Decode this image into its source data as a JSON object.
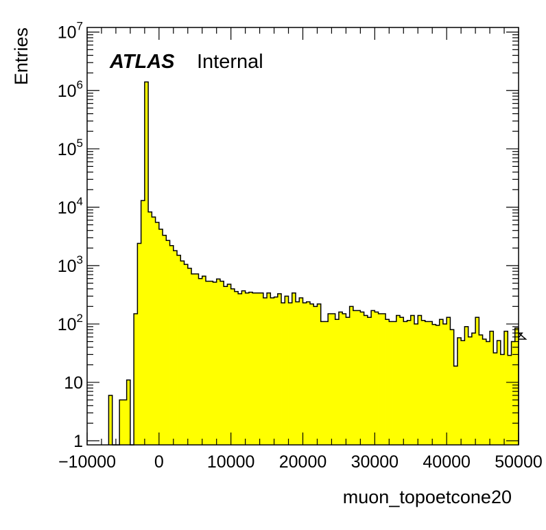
{
  "chart_data": {
    "type": "bar",
    "histogram_style": "step-filled",
    "fill_color": "#ffff00",
    "line_color": "#000000",
    "xlabel": "muon_topoetcone20",
    "ylabel": "Entries",
    "xlim": [
      -10000,
      50000
    ],
    "ylim": [
      0.85,
      12000000
    ],
    "y_scale": "log",
    "bin_width": 500,
    "x_tick_labels": [
      "−10000",
      "0",
      "10000",
      "20000",
      "30000",
      "40000",
      "50000"
    ],
    "x_tick_values": [
      -10000,
      0,
      10000,
      20000,
      30000,
      40000,
      50000
    ],
    "y_tick_labels": [
      {
        "base": "1",
        "exp": ""
      },
      {
        "base": "10",
        "exp": ""
      },
      {
        "base": "10",
        "exp": "2"
      },
      {
        "base": "10",
        "exp": "3"
      },
      {
        "base": "10",
        "exp": "4"
      },
      {
        "base": "10",
        "exp": "5"
      },
      {
        "base": "10",
        "exp": "6"
      },
      {
        "base": "10",
        "exp": "7"
      }
    ],
    "y_tick_values": [
      1,
      10,
      100,
      1000,
      10000,
      100000,
      1000000,
      10000000
    ],
    "bin_edges_start": -7000,
    "values": [
      6,
      0,
      0,
      5,
      5,
      11,
      0,
      150,
      2400,
      13000,
      1400000,
      8300,
      6800,
      5500,
      4200,
      3300,
      2700,
      2200,
      1800,
      1500,
      1200,
      1050,
      900,
      720,
      720,
      600,
      660,
      540,
      540,
      520,
      590,
      540,
      440,
      480,
      400,
      360,
      330,
      370,
      340,
      350,
      340,
      340,
      340,
      280,
      340,
      280,
      290,
      330,
      230,
      300,
      230,
      340,
      240,
      280,
      230,
      240,
      220,
      200,
      220,
      110,
      110,
      150,
      150,
      120,
      160,
      150,
      130,
      200,
      170,
      170,
      160,
      140,
      130,
      170,
      160,
      150,
      150,
      120,
      110,
      110,
      140,
      130,
      110,
      115,
      140,
      100,
      140,
      115,
      110,
      110,
      98,
      95,
      120,
      100,
      130,
      80,
      19,
      58,
      52,
      90,
      60,
      70,
      130,
      65,
      55,
      50,
      75,
      32,
      52,
      30,
      75,
      29,
      50,
      85,
      58,
      70,
      55
    ]
  },
  "annotations": {
    "experiment": "ATLAS",
    "status": "Internal"
  }
}
